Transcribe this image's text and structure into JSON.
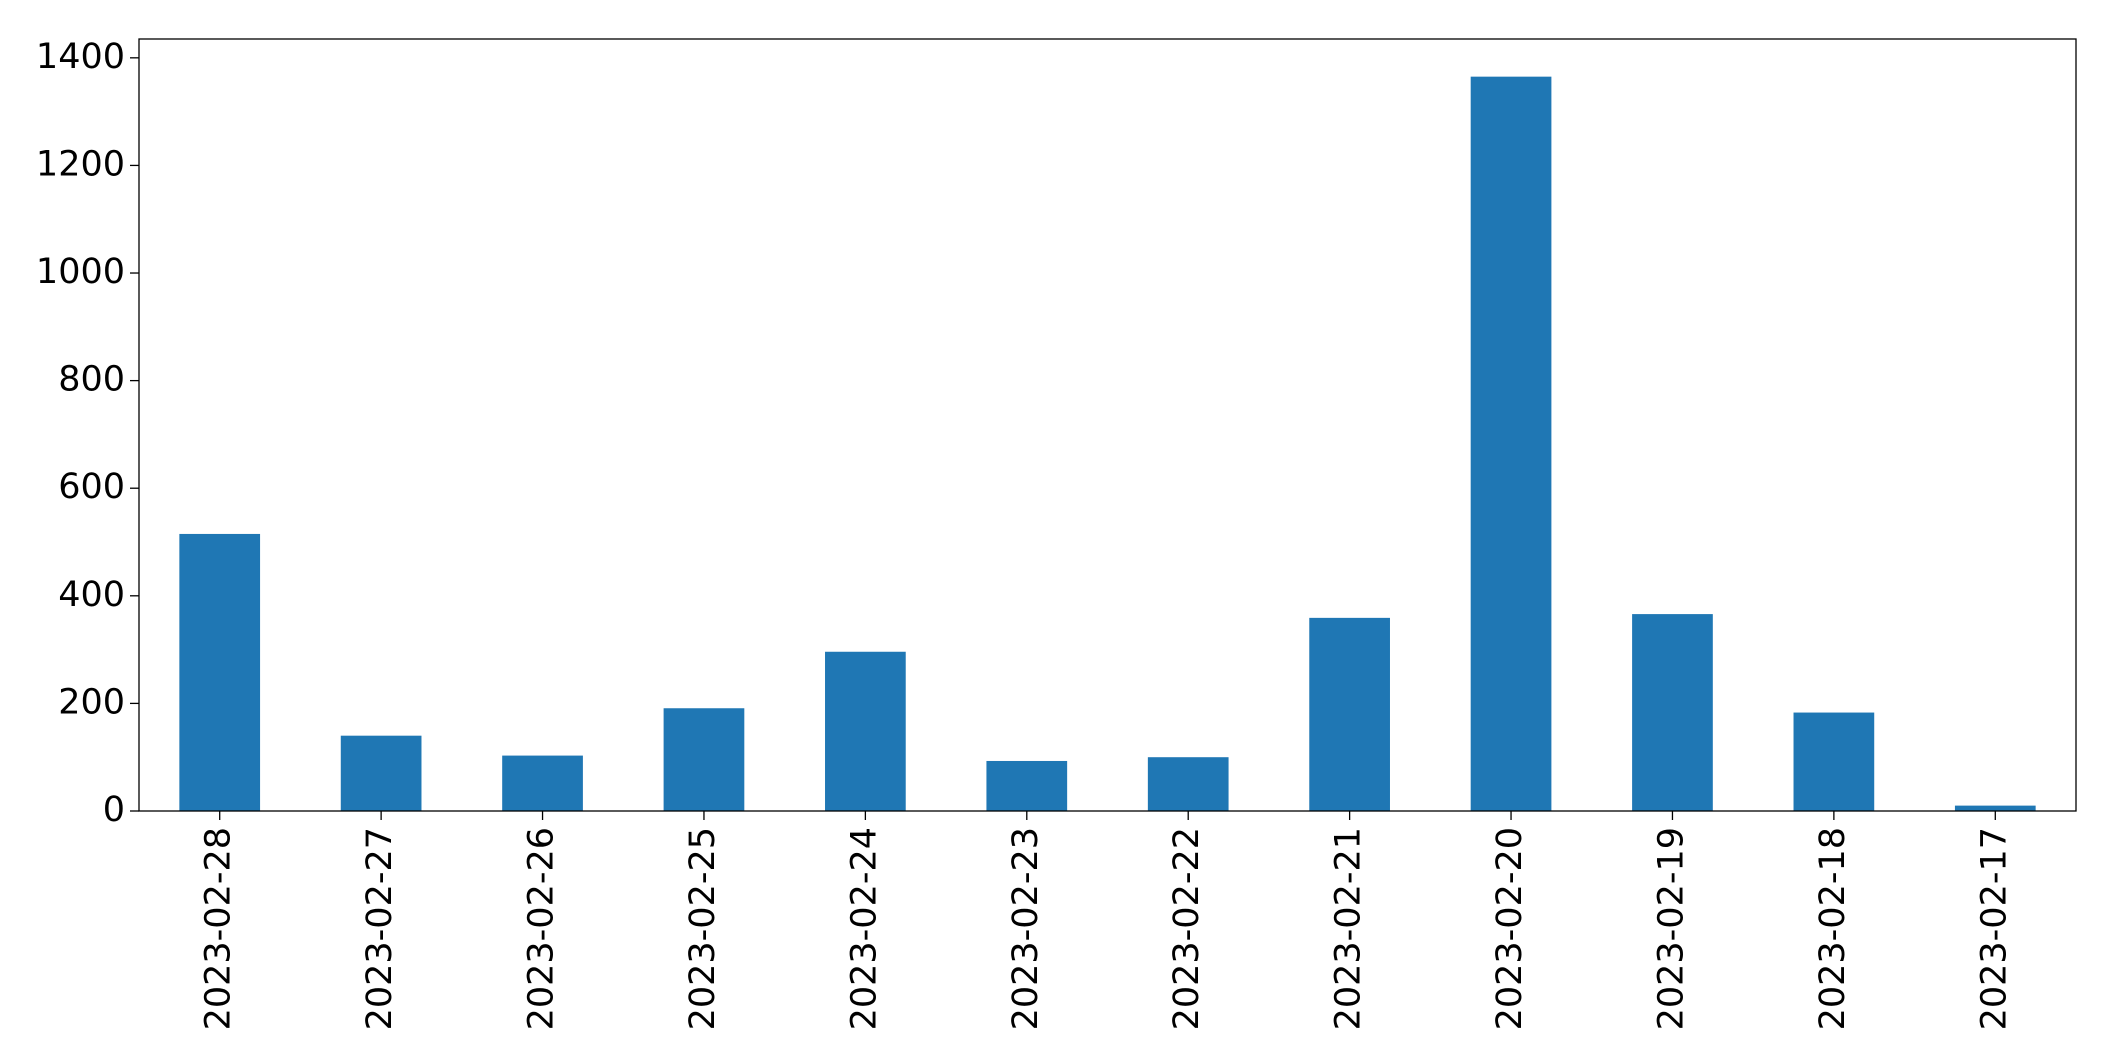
{
  "chart_data": {
    "type": "bar",
    "categories": [
      "2023-02-28",
      "2023-02-27",
      "2023-02-26",
      "2023-02-25",
      "2023-02-24",
      "2023-02-23",
      "2023-02-22",
      "2023-02-21",
      "2023-02-20",
      "2023-02-19",
      "2023-02-18",
      "2023-02-17"
    ],
    "values": [
      515,
      140,
      103,
      191,
      296,
      93,
      100,
      359,
      1365,
      366,
      183,
      10
    ],
    "color": "#1f77b4",
    "ylim": [
      0,
      1435
    ],
    "yticks": [
      0,
      200,
      400,
      600,
      800,
      1000,
      1200,
      1400
    ],
    "grid": false
  }
}
